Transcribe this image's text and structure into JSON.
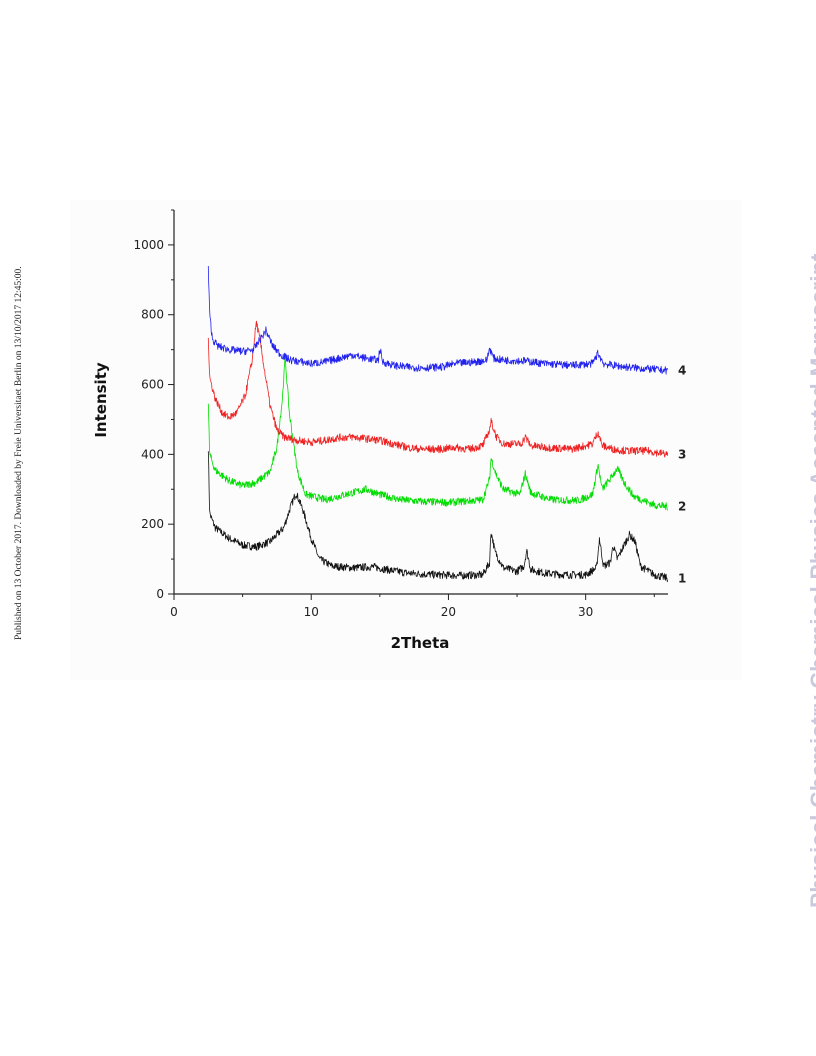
{
  "side_note": "Published on 13 October 2017. Downloaded by Freie Universitaet Berlin on 13/10/2017 12:45:00.",
  "watermark": "Physical Chemistry Chemical Physics Accepted Manuscript",
  "chart_data": {
    "type": "line",
    "title": "",
    "xlabel": "2Theta",
    "ylabel": "Intensity",
    "xlim": [
      0,
      36
    ],
    "ylim": [
      0,
      1100
    ],
    "xticks": [
      0,
      10,
      20,
      30
    ],
    "xtick_labels": [
      "0",
      "10",
      "20",
      "30"
    ],
    "yticks": [
      0,
      200,
      400,
      600,
      800,
      1000
    ],
    "ytick_labels": [
      "0",
      "200",
      "400",
      "600",
      "800",
      "1000"
    ],
    "grid": false,
    "legend": "none",
    "series": [
      {
        "label": "1",
        "color": "#111111",
        "points": [
          [
            2.5,
            420
          ],
          [
            2.6,
            230
          ],
          [
            3,
            190
          ],
          [
            4,
            160
          ],
          [
            5,
            140
          ],
          [
            6,
            135
          ],
          [
            7,
            150
          ],
          [
            8,
            190
          ],
          [
            8.5,
            250
          ],
          [
            8.9,
            290
          ],
          [
            9.4,
            240
          ],
          [
            10,
            160
          ],
          [
            10.6,
            100
          ],
          [
            11.5,
            80
          ],
          [
            13,
            75
          ],
          [
            14.5,
            78
          ],
          [
            15.5,
            70
          ],
          [
            17,
            60
          ],
          [
            19,
            55
          ],
          [
            21,
            53
          ],
          [
            22.5,
            55
          ],
          [
            23,
            90
          ],
          [
            23.1,
            180
          ],
          [
            23.4,
            120
          ],
          [
            24,
            75
          ],
          [
            25,
            65
          ],
          [
            25.5,
            80
          ],
          [
            25.7,
            125
          ],
          [
            26,
            70
          ],
          [
            27,
            60
          ],
          [
            28.5,
            55
          ],
          [
            30,
            55
          ],
          [
            30.8,
            75
          ],
          [
            31,
            160
          ],
          [
            31.3,
            80
          ],
          [
            31.8,
            90
          ],
          [
            32,
            140
          ],
          [
            32.3,
            100
          ],
          [
            32.8,
            140
          ],
          [
            33.2,
            170
          ],
          [
            33.6,
            150
          ],
          [
            34,
            80
          ],
          [
            35,
            55
          ],
          [
            36,
            45
          ]
        ]
      },
      {
        "label": "2",
        "color": "#00dd00",
        "points": [
          [
            2.5,
            545
          ],
          [
            2.6,
            400
          ],
          [
            3,
            355
          ],
          [
            4,
            325
          ],
          [
            5,
            310
          ],
          [
            6,
            320
          ],
          [
            7,
            350
          ],
          [
            7.5,
            420
          ],
          [
            7.9,
            560
          ],
          [
            8.1,
            680
          ],
          [
            8.4,
            520
          ],
          [
            9,
            350
          ],
          [
            9.6,
            285
          ],
          [
            11,
            270
          ],
          [
            13,
            290
          ],
          [
            14,
            300
          ],
          [
            15,
            285
          ],
          [
            16.5,
            270
          ],
          [
            18,
            265
          ],
          [
            20,
            262
          ],
          [
            22.5,
            270
          ],
          [
            23,
            330
          ],
          [
            23.1,
            390
          ],
          [
            23.5,
            340
          ],
          [
            24,
            300
          ],
          [
            25.2,
            285
          ],
          [
            25.6,
            345
          ],
          [
            26,
            290
          ],
          [
            27.5,
            270
          ],
          [
            29.5,
            268
          ],
          [
            30.5,
            285
          ],
          [
            30.9,
            370
          ],
          [
            31.2,
            300
          ],
          [
            31.8,
            330
          ],
          [
            32.3,
            360
          ],
          [
            32.8,
            320
          ],
          [
            33.5,
            280
          ],
          [
            35,
            255
          ],
          [
            36,
            250
          ]
        ]
      },
      {
        "label": "3",
        "color": "#ee2222",
        "points": [
          [
            2.5,
            735
          ],
          [
            2.6,
            620
          ],
          [
            3,
            560
          ],
          [
            3.5,
            520
          ],
          [
            4,
            505
          ],
          [
            4.6,
            520
          ],
          [
            5.2,
            570
          ],
          [
            5.7,
            670
          ],
          [
            6,
            780
          ],
          [
            6.3,
            720
          ],
          [
            6.6,
            640
          ],
          [
            7,
            540
          ],
          [
            7.5,
            470
          ],
          [
            8,
            450
          ],
          [
            9,
            440
          ],
          [
            10,
            435
          ],
          [
            11,
            440
          ],
          [
            12,
            448
          ],
          [
            13,
            450
          ],
          [
            14,
            445
          ],
          [
            15,
            440
          ],
          [
            16,
            430
          ],
          [
            17,
            420
          ],
          [
            18,
            415
          ],
          [
            19.5,
            415
          ],
          [
            20.5,
            420
          ],
          [
            21.5,
            415
          ],
          [
            22.5,
            425
          ],
          [
            23,
            470
          ],
          [
            23.1,
            495
          ],
          [
            23.5,
            450
          ],
          [
            24,
            430
          ],
          [
            25.3,
            430
          ],
          [
            25.6,
            450
          ],
          [
            26,
            425
          ],
          [
            27,
            420
          ],
          [
            29,
            415
          ],
          [
            30.5,
            430
          ],
          [
            30.9,
            465
          ],
          [
            31.2,
            425
          ],
          [
            32,
            415
          ],
          [
            33,
            410
          ],
          [
            34.5,
            410
          ],
          [
            36,
            400
          ]
        ]
      },
      {
        "label": "4",
        "color": "#2222ee",
        "points": [
          [
            2.5,
            935
          ],
          [
            2.6,
            800
          ],
          [
            2.8,
            730
          ],
          [
            3.2,
            710
          ],
          [
            4,
            700
          ],
          [
            5,
            695
          ],
          [
            5.8,
            700
          ],
          [
            6.3,
            730
          ],
          [
            6.7,
            755
          ],
          [
            7.2,
            710
          ],
          [
            7.8,
            685
          ],
          [
            8.5,
            670
          ],
          [
            10,
            660
          ],
          [
            11,
            665
          ],
          [
            12,
            675
          ],
          [
            13,
            685
          ],
          [
            14,
            675
          ],
          [
            14.9,
            670
          ],
          [
            15,
            705
          ],
          [
            15.2,
            665
          ],
          [
            16,
            655
          ],
          [
            17,
            650
          ],
          [
            18,
            648
          ],
          [
            19.5,
            650
          ],
          [
            20.5,
            660
          ],
          [
            22,
            665
          ],
          [
            22.8,
            670
          ],
          [
            23,
            705
          ],
          [
            23.3,
            675
          ],
          [
            24,
            670
          ],
          [
            25.5,
            668
          ],
          [
            27,
            660
          ],
          [
            29,
            655
          ],
          [
            30.5,
            660
          ],
          [
            30.9,
            690
          ],
          [
            31.3,
            660
          ],
          [
            32,
            655
          ],
          [
            33,
            650
          ],
          [
            34.5,
            645
          ],
          [
            36,
            640
          ]
        ]
      }
    ]
  }
}
